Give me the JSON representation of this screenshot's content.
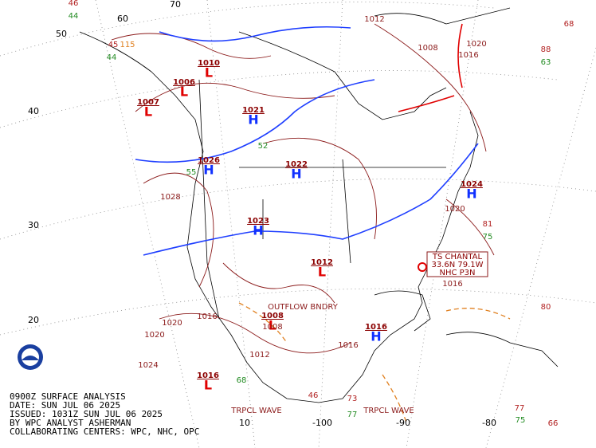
{
  "caption": [
    "0900Z SURFACE ANALYSIS",
    "DATE: SUN JUL 06 2025",
    "ISSUED: 1031Z SUN JUL 06 2025",
    "BY WPC ANALYST ASHERMAN",
    "COLLABORATING CENTERS: WPC, NHC, OPC"
  ],
  "lat_labels": [
    "50",
    "40",
    "30",
    "20"
  ],
  "lon_labels": [
    "60",
    "70",
    "10",
    "-100",
    "-90",
    "-80"
  ],
  "highs": [
    {
      "letter": "H",
      "pressure": "1021"
    },
    {
      "letter": "H",
      "pressure": "1022"
    },
    {
      "letter": "H",
      "pressure": "1026"
    },
    {
      "letter": "H",
      "pressure": "1024"
    },
    {
      "letter": "H",
      "pressure": "1023"
    },
    {
      "letter": "H",
      "pressure": "1016"
    }
  ],
  "lows": [
    {
      "letter": "L",
      "pressure": "1007"
    },
    {
      "letter": "L",
      "pressure": "1006"
    },
    {
      "letter": "L",
      "pressure": "1010"
    },
    {
      "letter": "L",
      "pressure": "1016"
    },
    {
      "letter": "L",
      "pressure": "1008"
    },
    {
      "letter": "L",
      "pressure": "1012"
    }
  ],
  "storm_box": [
    "TS CHANTAL",
    "33.6N 79.1W",
    "NHC P3N"
  ],
  "isobar_labels": [
    "1012",
    "1008",
    "1020",
    "1016",
    "1028",
    "1020",
    "1020",
    "1016",
    "1012",
    "1008",
    "1016",
    "1020",
    "1016",
    "1024"
  ],
  "boundary_labels": [
    "TRPCL WAVE",
    "TRPCL WAVE",
    "OUTFLOW BNDRY"
  ],
  "station_values": [
    "46",
    "44",
    "68",
    "88",
    "63",
    "81",
    "75",
    "80",
    "77",
    "75",
    "66",
    "77",
    "73",
    "46",
    "68",
    "45",
    "115",
    "44",
    "55",
    "52"
  ]
}
